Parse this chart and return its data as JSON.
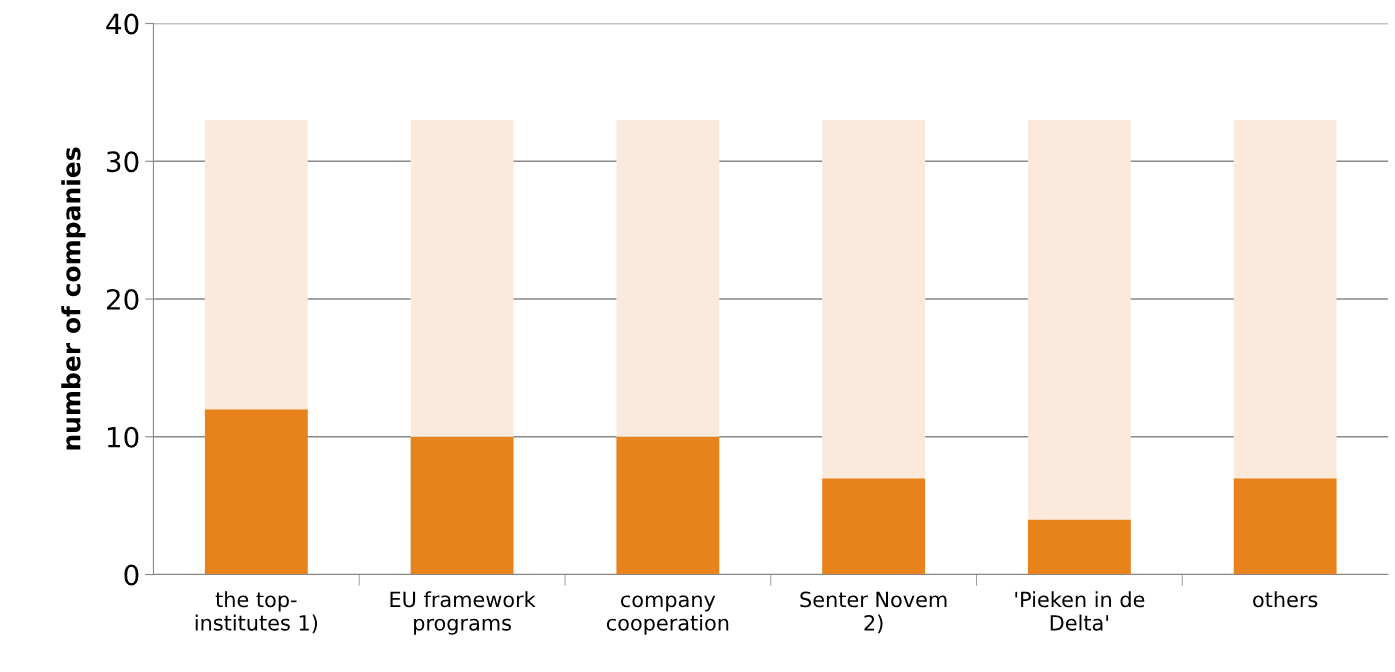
{
  "chart_data": {
    "type": "bar",
    "ylabel": "number of companies",
    "categories": [
      "the top-\ninstitutes 1)",
      "EU framework\nprograms",
      "company\ncooperation",
      "Senter Novem\n2)",
      "'Pieken in de\nDelta'",
      "others"
    ],
    "series": [
      {
        "color": "#e8831c",
        "values": [
          12,
          10,
          10,
          7,
          4,
          7
        ]
      },
      {
        "color": "#fbeadb",
        "values": [
          21,
          23,
          23,
          26,
          29,
          26
        ]
      }
    ],
    "stacked": true,
    "ylim": [
      0,
      40
    ],
    "yticks": [
      0,
      10,
      20,
      30,
      40
    ],
    "grid": "y",
    "legend": false
  }
}
